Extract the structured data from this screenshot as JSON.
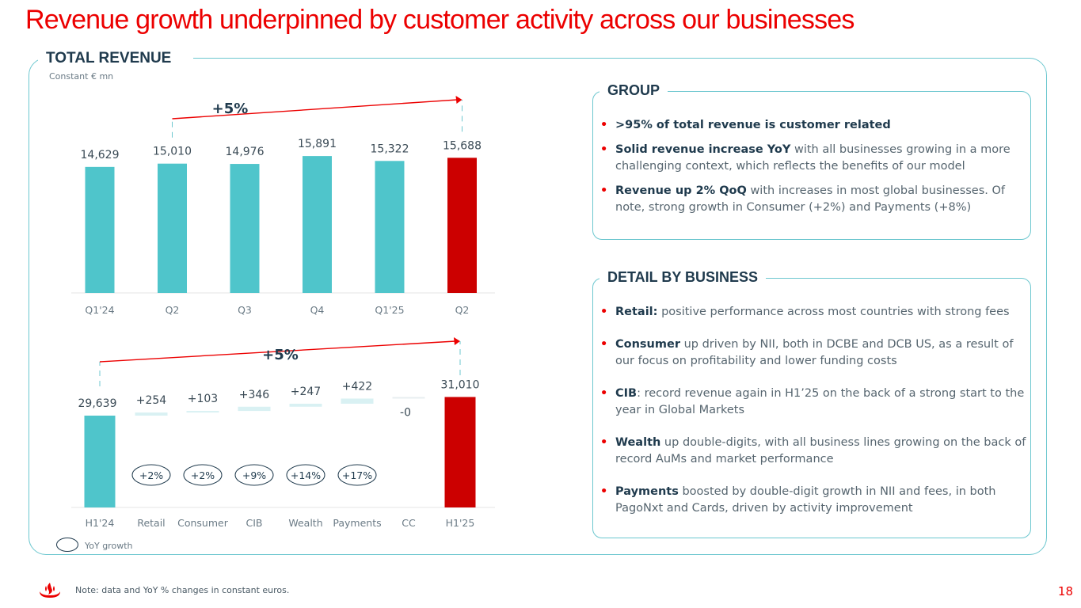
{
  "title": "Revenue growth underpinned by customer activity across our businesses",
  "total_revenue": {
    "heading": "TOTAL REVENUE",
    "unit": "Constant € mn"
  },
  "colors": {
    "teal": "#4fc5cb",
    "red": "#cc0000",
    "accent": "#ec0000",
    "navy": "#1f3a4d"
  },
  "chart_data": [
    {
      "type": "bar",
      "title": "Quarterly total revenue",
      "categories": [
        "Q1'24",
        "Q2",
        "Q3",
        "Q4",
        "Q1'25",
        "Q2"
      ],
      "values": [
        14629,
        15010,
        14976,
        15891,
        15322,
        15688
      ],
      "value_labels": [
        "14,629",
        "15,010",
        "14,976",
        "15,891",
        "15,322",
        "15,688"
      ],
      "highlight_index": 5,
      "growth_label": "+5%",
      "growth_from_index": 1,
      "growth_to_index": 5
    },
    {
      "type": "bar",
      "subtype": "waterfall",
      "title": "H1 revenue bridge by business",
      "categories": [
        "H1'24",
        "Retail",
        "Consumer",
        "CIB",
        "Wealth",
        "Payments",
        "CC",
        "H1'25"
      ],
      "values": [
        29639,
        254,
        103,
        346,
        247,
        422,
        0,
        31010
      ],
      "value_labels": [
        "29,639",
        "+254",
        "+103",
        "+346",
        "+247",
        "+422",
        "-0",
        "31,010"
      ],
      "yoy_growth": [
        "",
        "+2%",
        "+2%",
        "+9%",
        "+14%",
        "+17%",
        "",
        ""
      ],
      "growth_label": "+5%",
      "legend": "YoY growth"
    }
  ],
  "group": {
    "heading": "GROUP",
    "bullets": [
      {
        "bold": ">95% of total revenue is customer related",
        "text": ""
      },
      {
        "bold": "Solid revenue increase YoY",
        "text": " with all businesses growing in a more challenging context, which reflects the benefits of our model"
      },
      {
        "bold": "Revenue up 2% QoQ",
        "text": " with increases in most global businesses. Of note, strong growth in Consumer (+2%) and Payments (+8%)"
      }
    ]
  },
  "detail": {
    "heading": "DETAIL BY BUSINESS",
    "bullets": [
      {
        "bold": "Retail:",
        "text": " positive performance across most countries with strong fees"
      },
      {
        "bold": "Consumer",
        "text": " up driven by NII, both in DCBE and DCB US, as a result of our focus on profitability and lower funding costs"
      },
      {
        "bold": "CIB",
        "text": ": record revenue again in H1’25 on the back of a strong start to the year in Global Markets"
      },
      {
        "bold": "Wealth",
        "text": " up double-digits, with all business lines growing on the back of record AuMs and market performance"
      },
      {
        "bold": "Payments",
        "text": " boosted by double-digit growth in NII and fees, in both PagoNxt and Cards, driven by activity improvement"
      }
    ]
  },
  "footer": {
    "note": "Note: data and YoY % changes in constant euros.",
    "page": "18",
    "logo_icon": "flame-logo-icon"
  }
}
